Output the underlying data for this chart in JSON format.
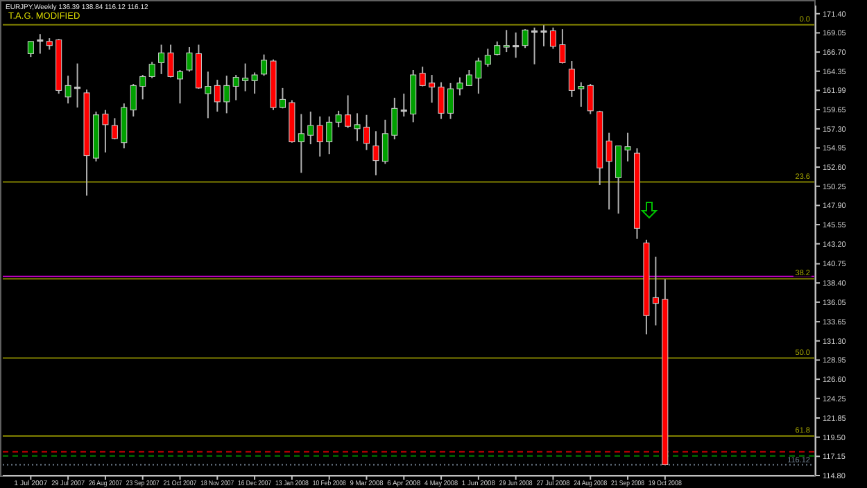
{
  "chart_data": {
    "type": "candlestick",
    "title": "EURJPY,Weekly  136.39 138.84 116.12 116.12",
    "subtitle": "T.A.G. MODIFIED",
    "x": [
      "2007-07-01",
      "2007-07-08",
      "2007-07-15",
      "2007-07-22",
      "2007-07-29",
      "2007-08-05",
      "2007-08-12",
      "2007-08-19",
      "2007-08-26",
      "2007-09-02",
      "2007-09-09",
      "2007-09-16",
      "2007-09-23",
      "2007-09-30",
      "2007-10-07",
      "2007-10-14",
      "2007-10-21",
      "2007-10-28",
      "2007-11-04",
      "2007-11-11",
      "2007-11-18",
      "2007-11-25",
      "2007-12-02",
      "2007-12-09",
      "2007-12-16",
      "2007-12-23",
      "2007-12-30",
      "2008-01-06",
      "2008-01-13",
      "2008-01-20",
      "2008-01-27",
      "2008-02-03",
      "2008-02-10",
      "2008-02-17",
      "2008-02-24",
      "2008-03-02",
      "2008-03-09",
      "2008-03-16",
      "2008-03-23",
      "2008-03-30",
      "2008-04-06",
      "2008-04-13",
      "2008-04-20",
      "2008-04-27",
      "2008-05-04",
      "2008-05-11",
      "2008-05-18",
      "2008-05-25",
      "2008-06-01",
      "2008-06-08",
      "2008-06-15",
      "2008-06-22",
      "2008-06-29",
      "2008-07-06",
      "2008-07-13",
      "2008-07-20",
      "2008-07-27",
      "2008-08-03",
      "2008-08-10",
      "2008-08-17",
      "2008-08-24",
      "2008-08-31",
      "2008-09-07",
      "2008-09-14",
      "2008-09-21",
      "2008-09-28",
      "2008-10-05",
      "2008-10-12",
      "2008-10-19"
    ],
    "ohlc": [
      [
        166.5,
        168.0,
        166.1,
        168.0
      ],
      [
        168.2,
        168.9,
        166.5,
        168.2
      ],
      [
        168.0,
        168.4,
        167.0,
        167.5
      ],
      [
        168.2,
        168.3,
        161.6,
        162.0
      ],
      [
        161.2,
        163.8,
        160.4,
        162.6
      ],
      [
        162.4,
        165.3,
        159.9,
        162.4
      ],
      [
        161.7,
        162.1,
        149.1,
        154.0
      ],
      [
        153.7,
        159.4,
        153.3,
        159.0
      ],
      [
        159.1,
        159.6,
        154.4,
        157.8
      ],
      [
        157.7,
        158.6,
        156.0,
        156.1
      ],
      [
        155.6,
        160.4,
        154.9,
        159.9
      ],
      [
        159.6,
        162.8,
        158.8,
        162.6
      ],
      [
        162.5,
        163.9,
        160.9,
        163.7
      ],
      [
        163.7,
        165.5,
        163.5,
        165.2
      ],
      [
        165.4,
        167.6,
        164.0,
        166.6
      ],
      [
        166.6,
        167.6,
        163.6,
        163.7
      ],
      [
        163.4,
        164.5,
        160.4,
        164.3
      ],
      [
        164.5,
        167.3,
        164.3,
        166.6
      ],
      [
        166.5,
        167.6,
        162.2,
        162.3
      ],
      [
        161.6,
        164.3,
        158.6,
        162.5
      ],
      [
        162.6,
        163.3,
        159.4,
        160.6
      ],
      [
        160.6,
        163.8,
        159.2,
        162.6
      ],
      [
        162.5,
        163.9,
        160.8,
        163.6
      ],
      [
        163.2,
        165.3,
        161.9,
        163.5
      ],
      [
        163.2,
        164.2,
        161.6,
        163.9
      ],
      [
        164.0,
        166.4,
        163.8,
        165.7
      ],
      [
        165.6,
        165.8,
        159.6,
        159.9
      ],
      [
        159.9,
        162.3,
        159.8,
        160.9
      ],
      [
        160.5,
        160.8,
        155.6,
        155.7
      ],
      [
        155.7,
        159.1,
        151.9,
        156.7
      ],
      [
        156.5,
        159.4,
        155.4,
        157.7
      ],
      [
        157.7,
        158.8,
        153.9,
        155.7
      ],
      [
        155.7,
        158.8,
        154.2,
        158.1
      ],
      [
        158.1,
        159.5,
        157.5,
        159.0
      ],
      [
        159.0,
        161.4,
        157.4,
        157.6
      ],
      [
        157.3,
        159.2,
        155.8,
        157.8
      ],
      [
        157.5,
        159.0,
        154.7,
        155.5
      ],
      [
        155.2,
        157.0,
        151.6,
        153.4
      ],
      [
        153.3,
        158.4,
        153.0,
        156.7
      ],
      [
        156.5,
        161.1,
        156.0,
        159.8
      ],
      [
        159.6,
        161.6,
        158.8,
        159.6
      ],
      [
        159.1,
        164.5,
        158.1,
        163.9
      ],
      [
        164.1,
        164.9,
        162.5,
        162.6
      ],
      [
        162.9,
        163.9,
        160.5,
        162.4
      ],
      [
        162.4,
        163.0,
        158.5,
        159.2
      ],
      [
        159.2,
        162.9,
        158.5,
        162.2
      ],
      [
        162.2,
        163.6,
        161.4,
        162.9
      ],
      [
        162.6,
        164.5,
        162.6,
        163.9
      ],
      [
        163.5,
        166.0,
        161.6,
        165.6
      ],
      [
        165.2,
        167.1,
        164.9,
        166.3
      ],
      [
        166.4,
        168.0,
        166.3,
        167.5
      ],
      [
        167.3,
        169.4,
        166.7,
        167.5
      ],
      [
        167.5,
        169.1,
        166.0,
        167.5
      ],
      [
        167.5,
        169.5,
        167.2,
        169.4
      ],
      [
        169.3,
        169.7,
        165.2,
        169.3
      ],
      [
        169.3,
        170.0,
        167.4,
        169.3
      ],
      [
        169.3,
        169.7,
        167.1,
        167.4
      ],
      [
        167.6,
        169.5,
        165.3,
        165.4
      ],
      [
        164.6,
        165.6,
        161.2,
        162.0
      ],
      [
        162.2,
        163.0,
        160.0,
        162.5
      ],
      [
        162.6,
        162.8,
        159.1,
        159.5
      ],
      [
        159.4,
        159.5,
        150.4,
        152.5
      ],
      [
        155.8,
        156.8,
        147.4,
        153.3
      ],
      [
        151.3,
        155.2,
        146.9,
        155.2
      ],
      [
        154.7,
        156.8,
        153.3,
        155.1
      ],
      [
        154.3,
        154.9,
        143.8,
        145.1
      ],
      [
        143.3,
        143.7,
        132.1,
        134.4
      ],
      [
        136.6,
        141.6,
        133.2,
        135.9
      ],
      [
        136.39,
        138.84,
        116.12,
        116.12
      ]
    ],
    "colors": [
      "#00a000",
      "#c0c0c0",
      "#ff0000",
      "#ff0000",
      "#00a000",
      "#c0c0c0",
      "#ff0000",
      "#00a000",
      "#ff0000",
      "#ff0000",
      "#00a000",
      "#00a000",
      "#00a000",
      "#00a000",
      "#00a000",
      "#ff0000",
      "#00a000",
      "#00a000",
      "#ff0000",
      "#00a000",
      "#ff0000",
      "#00a000",
      "#00a000",
      "#00a000",
      "#00a000",
      "#00a000",
      "#ff0000",
      "#00a000",
      "#ff0000",
      "#00a000",
      "#00a000",
      "#ff0000",
      "#00a000",
      "#00a000",
      "#ff0000",
      "#00a000",
      "#ff0000",
      "#ff0000",
      "#00a000",
      "#00a000",
      "#c0c0c0",
      "#00a000",
      "#ff0000",
      "#ff0000",
      "#ff0000",
      "#00a000",
      "#00a000",
      "#00a000",
      "#00a000",
      "#00a000",
      "#00a000",
      "#00a000",
      "#c0c0c0",
      "#00a000",
      "#c0c0c0",
      "#c0c0c0",
      "#ff0000",
      "#ff0000",
      "#ff0000",
      "#00a000",
      "#ff0000",
      "#ff0000",
      "#ff0000",
      "#00a000",
      "#00a000",
      "#ff0000",
      "#ff0000",
      "#ff0000",
      "#ff0000"
    ],
    "xlim": [
      "2007-06-10",
      "2009-02-08"
    ],
    "xticks": [
      {
        "value": "2007-07-01",
        "label": "1 Jul 2007"
      },
      {
        "value": "2007-07-29",
        "label": "29 Jul 2007"
      },
      {
        "value": "2007-08-26",
        "label": "26 Aug 2007"
      },
      {
        "value": "2007-09-23",
        "label": "23 Sep 2007"
      },
      {
        "value": "2007-10-21",
        "label": "21 Oct 2007"
      },
      {
        "value": "2007-11-18",
        "label": "18 Nov 2007"
      },
      {
        "value": "2007-12-16",
        "label": "16 Dec 2007"
      },
      {
        "value": "2008-01-13",
        "label": "13 Jan 2008"
      },
      {
        "value": "2008-02-10",
        "label": "10 Feb 2008"
      },
      {
        "value": "2008-03-09",
        "label": "9 Mar 2008"
      },
      {
        "value": "2008-04-06",
        "label": "6 Apr 2008"
      },
      {
        "value": "2008-05-04",
        "label": "4 May 2008"
      },
      {
        "value": "2008-06-01",
        "label": "1 Jun 2008"
      },
      {
        "value": "2008-06-29",
        "label": "29 Jun 2008"
      },
      {
        "value": "2008-07-27",
        "label": "27 Jul 2008"
      },
      {
        "value": "2008-08-24",
        "label": "24 Aug 2008"
      },
      {
        "value": "2008-09-21",
        "label": "21 Sep 2008"
      },
      {
        "value": "2008-10-19",
        "label": "19 Oct 2008"
      }
    ],
    "ylim": [
      114.8,
      172.4
    ],
    "yticks": [
      {
        "value": 171.4,
        "label": "171.40"
      },
      {
        "value": 169.05,
        "label": "169.05"
      },
      {
        "value": 166.7,
        "label": "166.70"
      },
      {
        "value": 164.35,
        "label": "164.35"
      },
      161.99,
      {
        "value": 159.65,
        "label": "159.65"
      },
      {
        "value": 157.3,
        "label": "157.30"
      },
      {
        "value": 154.95,
        "label": "154.95"
      },
      {
        "value": 152.6,
        "label": "152.60"
      },
      {
        "value": 150.25,
        "label": "150.25"
      },
      {
        "value": 147.9,
        "label": "147.90"
      },
      {
        "value": 145.55,
        "label": "145.55"
      },
      {
        "value": 143.2,
        "label": "143.20"
      },
      {
        "value": 140.75,
        "label": "140.75"
      },
      {
        "value": 138.4,
        "label": "138.40"
      },
      {
        "value": 136.05,
        "label": "136.05"
      },
      {
        "value": 133.65,
        "label": "133.65"
      },
      {
        "value": 131.3,
        "label": "131.30"
      },
      {
        "value": 128.95,
        "label": "128.95"
      },
      {
        "value": 126.6,
        "label": "126.60"
      },
      {
        "value": 124.25,
        "label": "124.25"
      },
      {
        "value": 121.85,
        "label": "121.85"
      },
      {
        "value": 119.5,
        "label": "119.50"
      },
      {
        "value": 117.15,
        "label": "117.15"
      },
      {
        "value": 114.8,
        "label": "114.80"
      }
    ],
    "annotations": [
      {
        "text": "0.0",
        "y": 170.04
      },
      {
        "text": "23.6",
        "y": 150.77
      },
      {
        "text": "38.2",
        "y": 138.91
      },
      {
        "text": "50.0",
        "y": 129.2
      },
      {
        "text": "61.8",
        "y": 119.65
      }
    ],
    "ref_lines": [
      {
        "axis": "y",
        "value": 170.04,
        "label": null,
        "color": "#808000"
      },
      {
        "axis": "y",
        "value": 150.77,
        "label": null,
        "color": "#808000"
      },
      {
        "axis": "y",
        "value": 139.2,
        "label": null,
        "color": "#cc00cc"
      },
      {
        "axis": "y",
        "value": 138.91,
        "label": null,
        "color": "#808000"
      },
      {
        "axis": "y",
        "value": 129.2,
        "label": null,
        "color": "#808000"
      },
      {
        "axis": "y",
        "value": 119.65,
        "label": null,
        "color": "#808000"
      },
      {
        "axis": "y",
        "value": 117.7,
        "label": null,
        "color": "#c00000",
        "line_style": "dashed"
      },
      {
        "axis": "y",
        "value": 117.2,
        "label": null,
        "color": "#008000",
        "line_style": "dashed"
      },
      {
        "axis": "y",
        "value": 116.12,
        "label": "116.12",
        "color": "#708090",
        "line_style": "dotted"
      }
    ]
  }
}
